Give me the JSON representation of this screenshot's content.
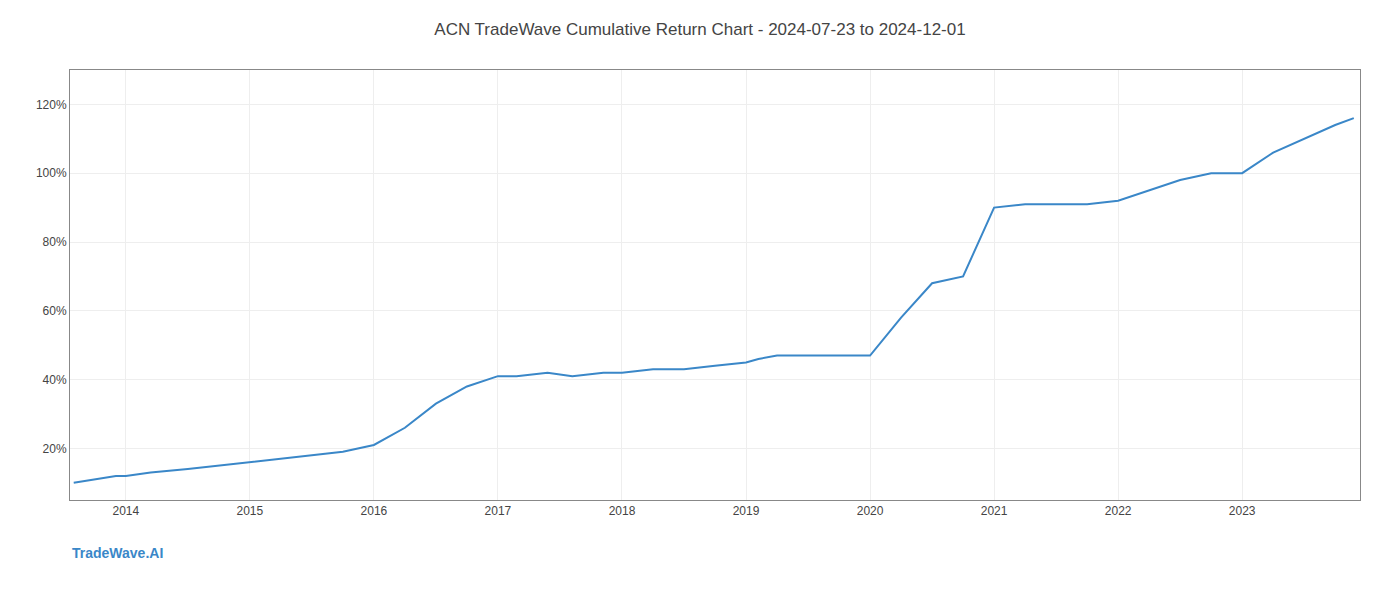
{
  "chart_data": {
    "type": "line",
    "title": "ACN TradeWave Cumulative Return Chart - 2024-07-23 to 2024-12-01",
    "annotations": [
      "TradeWave.AI"
    ],
    "x": [
      2013.58,
      2013.75,
      2013.92,
      2014.0,
      2014.2,
      2014.5,
      2014.75,
      2015.0,
      2015.25,
      2015.5,
      2015.75,
      2016.0,
      2016.25,
      2016.5,
      2016.75,
      2017.0,
      2017.15,
      2017.4,
      2017.6,
      2017.85,
      2018.0,
      2018.25,
      2018.5,
      2018.75,
      2019.0,
      2019.1,
      2019.25,
      2019.5,
      2019.75,
      2020.0,
      2020.25,
      2020.5,
      2020.75,
      2021.0,
      2021.25,
      2021.5,
      2021.75,
      2022.0,
      2022.25,
      2022.5,
      2022.75,
      2023.0,
      2023.25,
      2023.5,
      2023.75,
      2023.9
    ],
    "values": [
      10,
      11,
      12,
      12,
      13,
      14,
      15,
      16,
      17,
      18,
      19,
      21,
      26,
      33,
      38,
      41,
      41,
      42,
      41,
      42,
      42,
      43,
      43,
      44,
      45,
      46,
      47,
      47,
      47,
      47,
      58,
      68,
      70,
      90,
      91,
      91,
      91,
      92,
      95,
      98,
      100,
      100,
      106,
      110,
      114,
      116
    ],
    "color": "#3a87c8",
    "xlim": [
      2013.55,
      2023.95
    ],
    "xticks": [
      2014,
      2015,
      2016,
      2017,
      2018,
      2019,
      2020,
      2021,
      2022,
      2023
    ],
    "ylim": [
      5,
      130
    ],
    "yticks": [
      {
        "value": 20,
        "label": "20%"
      },
      {
        "value": 40,
        "label": "40%"
      },
      {
        "value": 60,
        "label": "60%"
      },
      {
        "value": 80,
        "label": "80%"
      },
      {
        "value": 100,
        "label": "100%"
      },
      {
        "value": 120,
        "label": "120%"
      }
    ],
    "grid": true
  }
}
